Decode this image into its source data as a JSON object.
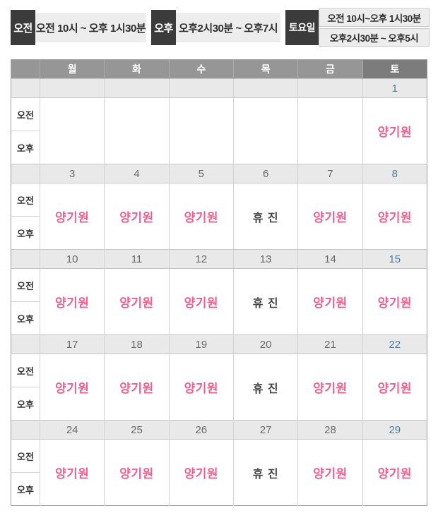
{
  "legend": {
    "am": {
      "label": "오전",
      "time": "오전 10시 ~ 오후 1시30분"
    },
    "pm": {
      "label": "오후",
      "time": "오후2시30분 ~ 오후7시"
    },
    "sat": {
      "label": "토요일",
      "time_am": "오전 10시~오후 1시30분",
      "time_pm": "오후2시30분 ~ 오후5시"
    }
  },
  "calendar": {
    "day_headers": [
      "월",
      "화",
      "수",
      "목",
      "금",
      "토"
    ],
    "row_labels": {
      "am": "오전",
      "pm": "오후"
    },
    "doctor_name": "양기원",
    "closed_label": "휴 진",
    "weeks": [
      {
        "dates": [
          "",
          "",
          "",
          "",
          "",
          "1"
        ],
        "cells": [
          "empty",
          "empty",
          "empty",
          "empty",
          "empty",
          "doctor"
        ]
      },
      {
        "dates": [
          "3",
          "4",
          "5",
          "6",
          "7",
          "8"
        ],
        "cells": [
          "doctor",
          "doctor",
          "doctor",
          "closed",
          "doctor",
          "doctor"
        ]
      },
      {
        "dates": [
          "10",
          "11",
          "12",
          "13",
          "14",
          "15"
        ],
        "cells": [
          "doctor",
          "doctor",
          "doctor",
          "closed",
          "doctor",
          "doctor"
        ]
      },
      {
        "dates": [
          "17",
          "18",
          "19",
          "20",
          "21",
          "22"
        ],
        "cells": [
          "doctor",
          "doctor",
          "doctor",
          "closed",
          "doctor",
          "doctor"
        ]
      },
      {
        "dates": [
          "24",
          "25",
          "26",
          "27",
          "28",
          "29"
        ],
        "cells": [
          "doctor",
          "doctor",
          "doctor",
          "closed",
          "doctor",
          "doctor"
        ]
      }
    ]
  },
  "colors": {
    "doctor_pink": "#f0608e",
    "saturday_blue": "#4e7b9e",
    "header_gray": "#969696",
    "saturday_header_gray": "#7c7c7c",
    "legend_tag_dark": "#3b3b3b",
    "legend_box_gray": "#ededed",
    "date_row_gray": "#e9e9e9"
  }
}
